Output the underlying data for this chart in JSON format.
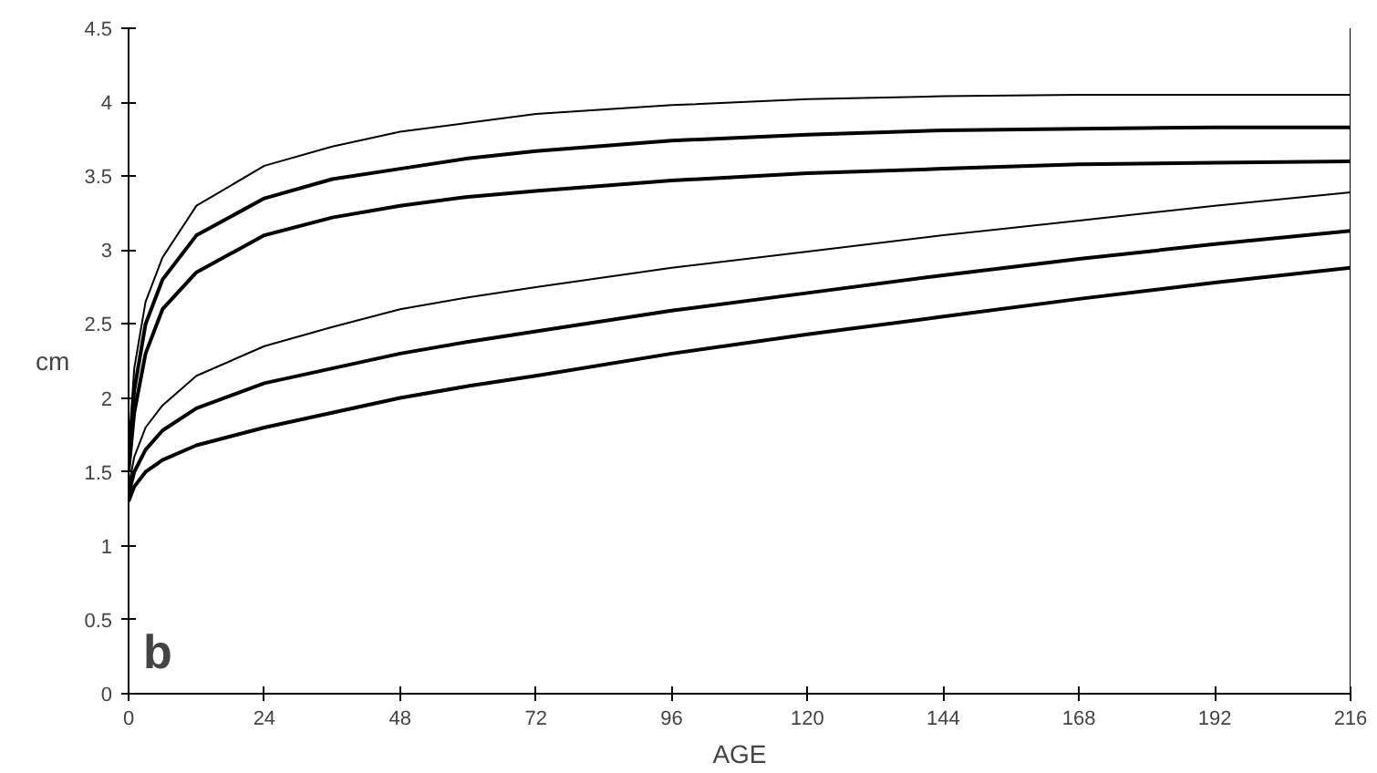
{
  "chart_data": {
    "type": "line",
    "xlabel": "AGE",
    "ylabel": "cm",
    "annotations": [
      "b"
    ],
    "x": [
      0,
      1,
      3,
      6,
      12,
      24,
      36,
      48,
      60,
      72,
      96,
      120,
      144,
      168,
      192,
      216
    ],
    "series": [
      {
        "color": "#000000",
        "values": [
          1.65,
          2.2,
          2.65,
          2.95,
          3.3,
          3.57,
          3.7,
          3.8,
          3.86,
          3.92,
          3.98,
          4.02,
          4.04,
          4.05,
          4.05,
          4.05
        ]
      },
      {
        "color": "#000000",
        "values": [
          1.55,
          2.05,
          2.5,
          2.8,
          3.1,
          3.35,
          3.48,
          3.55,
          3.62,
          3.67,
          3.74,
          3.78,
          3.81,
          3.82,
          3.83,
          3.83
        ]
      },
      {
        "color": "#000000",
        "values": [
          1.5,
          1.9,
          2.3,
          2.6,
          2.85,
          3.1,
          3.22,
          3.3,
          3.36,
          3.4,
          3.47,
          3.52,
          3.55,
          3.58,
          3.59,
          3.6
        ]
      },
      {
        "color": "#000000",
        "values": [
          1.4,
          1.6,
          1.8,
          1.95,
          2.15,
          2.35,
          2.48,
          2.6,
          2.68,
          2.75,
          2.88,
          2.99,
          3.1,
          3.2,
          3.3,
          3.39
        ]
      },
      {
        "color": "#000000",
        "values": [
          1.35,
          1.5,
          1.65,
          1.78,
          1.93,
          2.1,
          2.2,
          2.3,
          2.38,
          2.45,
          2.59,
          2.71,
          2.83,
          2.94,
          3.04,
          3.13
        ]
      },
      {
        "color": "#000000",
        "values": [
          1.3,
          1.4,
          1.5,
          1.58,
          1.68,
          1.8,
          1.9,
          2.0,
          2.08,
          2.15,
          2.3,
          2.43,
          2.55,
          2.67,
          2.78,
          2.88
        ]
      }
    ],
    "xlim": [
      0,
      216
    ],
    "ylim": [
      0,
      4.5
    ],
    "xticks": [
      0,
      24,
      48,
      72,
      96,
      120,
      144,
      168,
      192,
      216
    ],
    "yticks": [
      0,
      0.5,
      1,
      1.5,
      2,
      2.5,
      3,
      3.5,
      4,
      4.5
    ],
    "line_style": "solid"
  }
}
